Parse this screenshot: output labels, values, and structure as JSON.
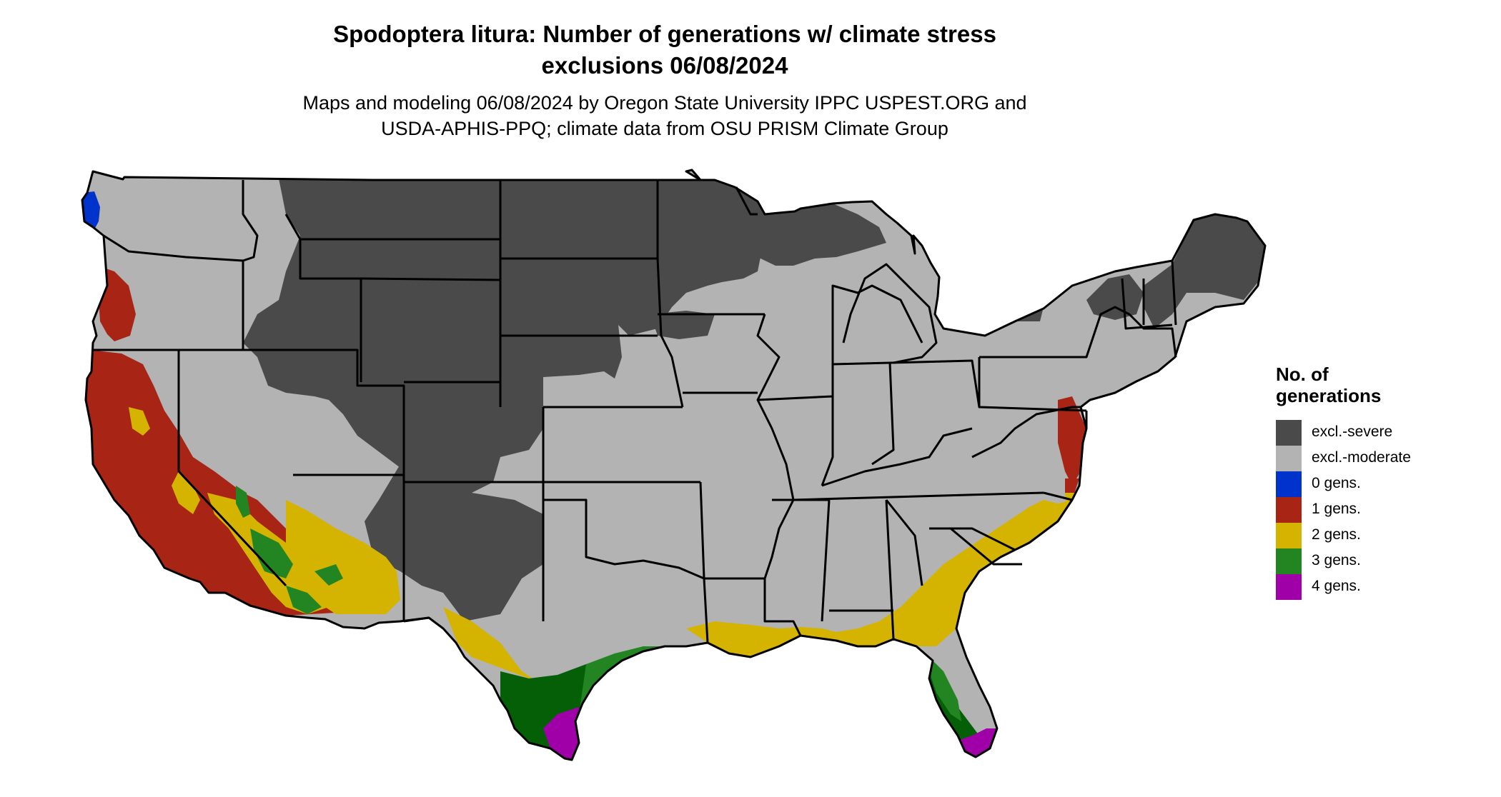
{
  "map": {
    "title_line1": "Spodoptera litura: Number of generations w/ climate stress",
    "title_line2": "exclusions 06/08/2024",
    "subtitle_line1": "Maps and modeling 06/08/2024 by Oregon State University IPPC USPEST.ORG and",
    "subtitle_line2": "USDA-APHIS-PPQ; climate data from OSU PRISM Climate Group"
  },
  "colors": {
    "excl_severe": "#4a4a4a",
    "excl_moderate": "#b3b3b3",
    "gen0": "#0033cc",
    "gen1": "#a82415",
    "gen2": "#d4b400",
    "gen3": "#238522",
    "gen3_dark": "#045f07",
    "gen4": "#a000a8",
    "light_green": "#7fd67a",
    "border": "#000000"
  },
  "legend": {
    "title_line1": "No. of",
    "title_line2": "generations",
    "items": [
      {
        "label": "excl.-severe",
        "color": "#4a4a4a"
      },
      {
        "label": "excl.-moderate",
        "color": "#b3b3b3"
      },
      {
        "label": "0 gens.",
        "color": "#0033cc"
      },
      {
        "label": "1 gens.",
        "color": "#a82415"
      },
      {
        "label": "2 gens.",
        "color": "#d4b400"
      },
      {
        "label": "3 gens.",
        "color": "#238522"
      },
      {
        "label": "4 gens.",
        "color": "#a000a8"
      }
    ]
  }
}
